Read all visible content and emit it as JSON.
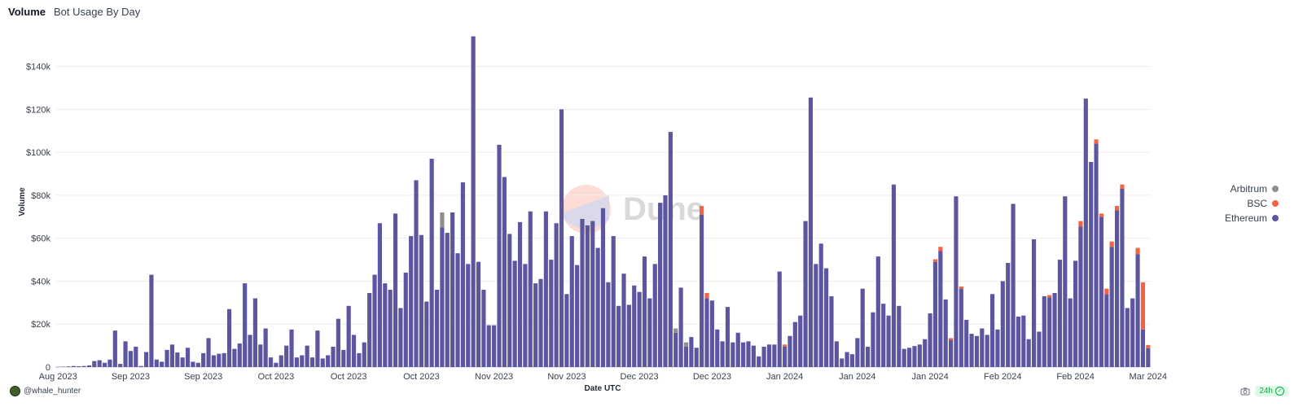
{
  "tabs": [
    {
      "label": "Volume"
    },
    {
      "label": "Bot Usage By Day"
    }
  ],
  "footer": {
    "user": "@whale_hunter",
    "refresh": "24h"
  },
  "watermark": "Dune",
  "chart_data": {
    "type": "bar",
    "stacked": true,
    "xlabel": "Date UTC",
    "ylabel": "Volume",
    "ylim": [
      0,
      155000
    ],
    "yticks": [
      0,
      20000,
      40000,
      60000,
      80000,
      100000,
      120000,
      140000
    ],
    "ytick_labels": [
      "0",
      "$20k",
      "$40k",
      "$60k",
      "$80k",
      "$100k",
      "$120k",
      "$140k"
    ],
    "xtick_labels": [
      "Aug 2023",
      "Sep 2023",
      "Sep 2023",
      "Oct 2023",
      "Oct 2023",
      "Oct 2023",
      "Nov 2023",
      "Nov 2023",
      "Dec 2023",
      "Dec 2023",
      "Jan 2024",
      "Jan 2024",
      "Jan 2024",
      "Feb 2024",
      "Feb 2024",
      "Mar 2024"
    ],
    "xtick_index": [
      0,
      14,
      28,
      42,
      56,
      70,
      84,
      98,
      112,
      126,
      140,
      154,
      168,
      182,
      196,
      210
    ],
    "grid": true,
    "legend_position": "right",
    "legend": [
      "Arbitrum",
      "BSC",
      "Ethereum"
    ],
    "colors": {
      "Ethereum": "#5c56a0",
      "BSC": "#f26441",
      "Arbitrum": "#8e8e8e"
    },
    "series": [
      {
        "name": "Ethereum",
        "values": [
          100,
          200,
          300,
          500,
          400,
          500,
          800,
          2800,
          3200,
          2000,
          3500,
          17000,
          1500,
          12000,
          7500,
          9500,
          500,
          7000,
          43000,
          3500,
          2500,
          8000,
          10500,
          6800,
          4500,
          9000,
          2500,
          2000,
          6500,
          13500,
          5500,
          6200,
          6500,
          27000,
          8500,
          11000,
          39000,
          15000,
          32000,
          10500,
          18000,
          4500,
          2000,
          5500,
          10000,
          17500,
          4500,
          5500,
          10000,
          4500,
          17000,
          4000,
          5500,
          9500,
          22500,
          8000,
          28500,
          15000,
          6500,
          11500,
          34500,
          43000,
          67000,
          39000,
          36000,
          71500,
          27500,
          44000,
          61000,
          87000,
          61500,
          30500,
          97000,
          36000,
          65000,
          62500,
          72000,
          53000,
          86000,
          48000,
          154000,
          49000,
          36000,
          19500,
          19500,
          103500,
          88500,
          62000,
          49500,
          67500,
          48000,
          72500,
          39000,
          41000,
          72500,
          50000,
          67000,
          120000,
          34000,
          61000,
          47500,
          69000,
          66000,
          68000,
          55500,
          74000,
          39500,
          61000,
          28500,
          43500,
          29000,
          38000,
          35000,
          51500,
          32000,
          48000,
          76500,
          80000,
          109500,
          16000,
          37000,
          9500,
          14000,
          9000,
          71000,
          32000,
          31000,
          17500,
          12000,
          28000,
          11500,
          16000,
          11500,
          12000,
          10000,
          5000,
          9500,
          10500,
          10500,
          44500,
          9500,
          14500,
          21000,
          24000,
          68000,
          125500,
          48000,
          57500,
          46000,
          33000,
          12000,
          4000,
          7000,
          6000,
          13500,
          36500,
          9500,
          25500,
          51500,
          29500,
          24000,
          85000,
          28500,
          8500,
          9000,
          9800,
          10500,
          13000,
          25000,
          49000,
          54000,
          31500,
          12500,
          79500,
          36500,
          22000,
          15500,
          14500,
          18000,
          15000,
          34000,
          17500,
          40000,
          48500,
          76000,
          23500,
          24000,
          13000,
          59500,
          16500,
          33000,
          32500,
          34500,
          50000,
          79500,
          32000,
          49500,
          65500,
          125000,
          95500,
          104000,
          70000,
          34000,
          56000,
          73000,
          83000,
          27500,
          32000,
          52500,
          17500,
          8800
        ]
      },
      {
        "name": "BSC",
        "values": [
          0,
          0,
          0,
          0,
          0,
          0,
          0,
          0,
          0,
          0,
          0,
          0,
          0,
          0,
          0,
          0,
          0,
          0,
          0,
          0,
          0,
          0,
          0,
          0,
          0,
          0,
          0,
          0,
          0,
          0,
          0,
          0,
          0,
          0,
          0,
          0,
          0,
          0,
          0,
          0,
          0,
          0,
          0,
          0,
          0,
          0,
          0,
          0,
          0,
          0,
          0,
          0,
          0,
          0,
          0,
          0,
          0,
          0,
          0,
          0,
          0,
          0,
          0,
          0,
          0,
          0,
          0,
          0,
          0,
          0,
          0,
          0,
          0,
          0,
          0,
          0,
          0,
          0,
          0,
          0,
          0,
          0,
          0,
          0,
          0,
          0,
          0,
          0,
          0,
          0,
          0,
          0,
          0,
          0,
          0,
          0,
          0,
          0,
          0,
          0,
          0,
          0,
          0,
          0,
          0,
          0,
          0,
          0,
          0,
          0,
          0,
          0,
          0,
          0,
          0,
          0,
          0,
          0,
          0,
          0,
          0,
          0,
          0,
          0,
          4000,
          2500,
          0,
          0,
          0,
          0,
          0,
          0,
          0,
          0,
          0,
          0,
          0,
          0,
          0,
          0,
          1000,
          0,
          0,
          0,
          0,
          0,
          0,
          0,
          0,
          0,
          0,
          0,
          0,
          0,
          0,
          0,
          0,
          0,
          0,
          0,
          0,
          0,
          0,
          0,
          0,
          0,
          0,
          0,
          0,
          1200,
          2000,
          0,
          1000,
          0,
          1000,
          0,
          0,
          0,
          0,
          0,
          0,
          0,
          0,
          0,
          0,
          0,
          0,
          0,
          0,
          0,
          0,
          1000,
          0,
          0,
          0,
          0,
          0,
          2500,
          0,
          0,
          2000,
          1500,
          2500,
          2500,
          2000,
          2000,
          0,
          0,
          3000,
          22000,
          1500,
          0,
          0,
          0
        ]
      },
      {
        "name": "Arbitrum",
        "values": [
          0,
          0,
          0,
          0,
          0,
          0,
          0,
          0,
          0,
          0,
          0,
          0,
          0,
          0,
          0,
          0,
          0,
          0,
          0,
          0,
          0,
          0,
          0,
          0,
          0,
          0,
          0,
          0,
          0,
          0,
          0,
          0,
          0,
          0,
          0,
          0,
          0,
          0,
          0,
          0,
          0,
          0,
          0,
          0,
          0,
          0,
          0,
          0,
          0,
          0,
          0,
          0,
          0,
          0,
          0,
          0,
          0,
          0,
          0,
          0,
          0,
          0,
          0,
          0,
          0,
          0,
          0,
          0,
          0,
          0,
          0,
          0,
          0,
          0,
          7000,
          0,
          0,
          0,
          0,
          0,
          0,
          0,
          0,
          0,
          0,
          0,
          0,
          0,
          0,
          0,
          0,
          0,
          0,
          0,
          0,
          0,
          0,
          0,
          0,
          0,
          0,
          0,
          0,
          0,
          0,
          0,
          0,
          0,
          0,
          0,
          0,
          0,
          0,
          0,
          0,
          0,
          0,
          0,
          0,
          2000,
          0,
          2000,
          0,
          0,
          0,
          0,
          0,
          0,
          0,
          0,
          0,
          0,
          0,
          0,
          0,
          0,
          0,
          0,
          0,
          0,
          0,
          0,
          0,
          0,
          0,
          0,
          0,
          0,
          0,
          0,
          0,
          0,
          0,
          0,
          0,
          0,
          0,
          0,
          0,
          0,
          0,
          0,
          0,
          0,
          0,
          0,
          0,
          0,
          0,
          0,
          0,
          0,
          0,
          0,
          0,
          0,
          0,
          0,
          0,
          0,
          0,
          0,
          0,
          0,
          0,
          0,
          0,
          0,
          0,
          0,
          0,
          0,
          0,
          0,
          0,
          0,
          0,
          0,
          0,
          0,
          0,
          0,
          0,
          0,
          0,
          0,
          0,
          0,
          0,
          0,
          0,
          0,
          0,
          0,
          0,
          0
        ]
      }
    ]
  }
}
